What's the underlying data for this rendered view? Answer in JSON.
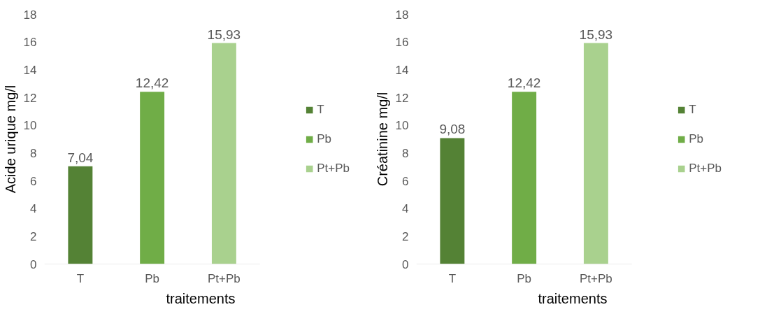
{
  "chart_data": [
    {
      "type": "bar",
      "categories": [
        "T",
        "Pb",
        "Pt+Pb"
      ],
      "xlabel": "traitements",
      "ylabel": "Acide urique mg/l",
      "ylim": [
        0,
        18
      ],
      "yticks": [
        0,
        2,
        4,
        6,
        8,
        10,
        12,
        14,
        16,
        18
      ],
      "legend": "right",
      "grid": false,
      "series": [
        {
          "name": "T",
          "color": "#548235",
          "values": [
            7.04,
            null,
            null
          ],
          "value_labels": [
            "7,04",
            null,
            null
          ]
        },
        {
          "name": "Pb",
          "color": "#70ad47",
          "values": [
            null,
            12.42,
            null
          ],
          "value_labels": [
            null,
            "12,42",
            null
          ]
        },
        {
          "name": "Pt+Pb",
          "color": "#a9d18e",
          "values": [
            null,
            null,
            15.93
          ],
          "value_labels": [
            null,
            null,
            "15,93"
          ]
        }
      ]
    },
    {
      "type": "bar",
      "categories": [
        "T",
        "Pb",
        "Pt+Pb"
      ],
      "xlabel": "traitements",
      "ylabel": "Créatinine mg/l",
      "ylim": [
        0,
        18
      ],
      "yticks": [
        0,
        2,
        4,
        6,
        8,
        10,
        12,
        14,
        16,
        18
      ],
      "legend": "right",
      "grid": false,
      "series": [
        {
          "name": "T",
          "color": "#548235",
          "values": [
            9.08,
            null,
            null
          ],
          "value_labels": [
            "9,08",
            null,
            null
          ]
        },
        {
          "name": "Pb",
          "color": "#70ad47",
          "values": [
            null,
            12.42,
            null
          ],
          "value_labels": [
            null,
            "12,42",
            null
          ]
        },
        {
          "name": "Pt+Pb",
          "color": "#a9d18e",
          "values": [
            null,
            null,
            15.93
          ],
          "value_labels": [
            null,
            null,
            "15,93"
          ]
        }
      ]
    }
  ]
}
